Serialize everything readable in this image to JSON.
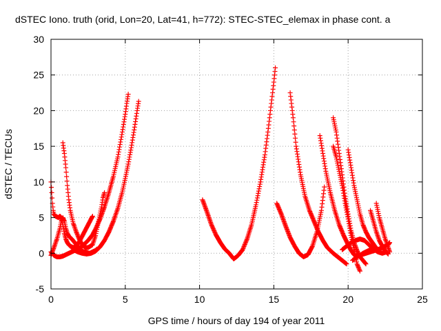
{
  "chart_data": {
    "type": "scatter",
    "title": "dSTEC Iono. truth (orid, Lon=20, Lat=41, h=772): STEC-STEC_elemax in phase cont. a",
    "xlabel": "GPS time / hours of day 194 of year 2011",
    "ylabel": "dSTEC  / TECUs",
    "xlim": [
      0,
      25
    ],
    "ylim": [
      -5,
      30
    ],
    "xticks": [
      "0",
      "5",
      "10",
      "15",
      "20",
      "25"
    ],
    "yticks": [
      "-5",
      "0",
      "5",
      "10",
      "15",
      "20",
      "25",
      "30"
    ],
    "grid": true,
    "marker": "+",
    "color": "#ff0000",
    "series": [
      {
        "x": [
          0.0,
          0.05,
          0.1,
          0.15,
          0.2,
          0.3,
          0.4,
          0.5,
          0.6,
          0.7,
          0.8,
          0.9,
          1.0,
          1.1,
          1.2,
          1.3,
          1.5,
          1.7,
          1.9,
          2.1,
          2.3,
          2.5,
          2.7,
          2.8
        ],
        "y": [
          10.0,
          8.5,
          7.0,
          6.0,
          5.5,
          5.2,
          5.1,
          5.0,
          5.2,
          5.0,
          4.0,
          2.8,
          2.0,
          1.5,
          1.2,
          1.0,
          0.8,
          1.0,
          1.6,
          2.4,
          3.2,
          4.0,
          4.8,
          5.2
        ]
      },
      {
        "x": [
          0.0,
          0.2,
          0.4,
          0.6,
          0.7,
          0.8,
          0.9,
          1.0,
          1.1,
          1.2,
          1.4,
          1.6,
          1.8,
          2.0,
          2.2,
          2.4,
          2.6,
          2.8,
          3.0,
          3.1
        ],
        "y": [
          -0.3,
          0.8,
          2.0,
          3.5,
          4.5,
          5.0,
          4.5,
          3.5,
          2.8,
          2.4,
          2.0,
          1.5,
          1.0,
          0.5,
          0.2,
          0.1,
          0.0,
          0.2,
          0.4,
          0.6
        ]
      },
      {
        "x": [
          0.8,
          0.9,
          1.0,
          1.1,
          1.2,
          1.3,
          1.5,
          1.7,
          1.9,
          2.1,
          2.3,
          2.5,
          2.8,
          3.0,
          3.2,
          3.4,
          3.5,
          3.6
        ],
        "y": [
          15.5,
          14.0,
          12.0,
          9.5,
          7.5,
          6.0,
          4.2,
          3.0,
          2.0,
          1.2,
          0.8,
          0.8,
          1.2,
          2.5,
          4.5,
          6.5,
          7.8,
          8.5
        ]
      },
      {
        "x": [
          0.0,
          0.2,
          0.4,
          0.6,
          0.8,
          1.0,
          1.2,
          1.5,
          1.8,
          2.0,
          2.2,
          2.5,
          2.8,
          3.0,
          3.3,
          3.6,
          3.9,
          4.2,
          4.5,
          4.8,
          5.0,
          5.1,
          5.2
        ],
        "y": [
          0.2,
          -0.3,
          -0.5,
          -0.5,
          -0.4,
          -0.2,
          0.0,
          0.3,
          0.6,
          0.8,
          1.2,
          1.8,
          2.6,
          3.4,
          4.8,
          6.5,
          8.5,
          10.8,
          13.5,
          17.0,
          19.5,
          21.0,
          22.3
        ]
      },
      {
        "x": [
          1.5,
          1.8,
          2.1,
          2.4,
          2.7,
          3.0,
          3.3,
          3.6,
          3.9,
          4.2,
          4.5,
          4.8,
          5.0,
          5.2,
          5.4,
          5.6,
          5.8,
          5.9
        ],
        "y": [
          0.5,
          0.2,
          0.0,
          -0.1,
          0.0,
          0.3,
          0.9,
          1.8,
          3.0,
          4.5,
          6.3,
          8.6,
          10.5,
          12.5,
          14.8,
          17.3,
          20.0,
          21.3
        ]
      },
      {
        "x": [
          10.2,
          10.5,
          10.8,
          11.1,
          11.4,
          11.7,
          12.0,
          12.3,
          12.6,
          12.9,
          13.2,
          13.5,
          13.8,
          14.1,
          14.4,
          14.6,
          14.8,
          15.0,
          15.1
        ],
        "y": [
          7.5,
          5.8,
          4.0,
          2.6,
          1.5,
          0.6,
          0.0,
          -0.8,
          -0.3,
          0.5,
          2.0,
          4.0,
          6.8,
          10.0,
          13.8,
          17.0,
          20.5,
          24.0,
          26.0
        ]
      },
      {
        "x": [
          15.2,
          15.5,
          15.8,
          16.1,
          16.4,
          16.7,
          17.0,
          17.3,
          17.6,
          17.9,
          18.2,
          18.4
        ],
        "y": [
          7.0,
          5.5,
          3.8,
          2.2,
          1.0,
          0.0,
          -0.5,
          -0.2,
          1.0,
          3.0,
          6.0,
          9.3
        ]
      },
      {
        "x": [
          16.1,
          16.3,
          16.5,
          16.8,
          17.1,
          17.4,
          17.7,
          18.0,
          18.3,
          18.6,
          19.0,
          19.3,
          19.6,
          19.9
        ],
        "y": [
          22.5,
          19.0,
          15.0,
          11.0,
          8.0,
          6.0,
          4.5,
          3.0,
          1.8,
          0.8,
          0.0,
          -0.5,
          -1.0,
          -1.5
        ]
      },
      {
        "x": [
          18.1,
          18.3,
          18.5,
          18.8,
          19.1,
          19.4,
          19.7,
          20.0,
          20.2,
          20.4,
          20.6,
          20.8,
          21.0,
          21.3,
          21.6
        ],
        "y": [
          16.5,
          14.0,
          11.5,
          8.5,
          6.0,
          4.0,
          2.5,
          1.2,
          0.4,
          -0.2,
          -0.5,
          -0.3,
          0.0,
          0.3,
          0.6
        ]
      },
      {
        "x": [
          19.0,
          19.2,
          19.4,
          19.6,
          19.8,
          20.0,
          20.2,
          20.4,
          20.6,
          20.8,
          21.0,
          21.2
        ],
        "y": [
          19.0,
          17.0,
          14.0,
          11.0,
          8.0,
          5.5,
          3.2,
          1.5,
          0.4,
          -0.5,
          -1.0,
          -1.5
        ]
      },
      {
        "x": [
          19.0,
          19.2,
          19.4,
          19.6,
          19.8,
          20.0,
          20.2,
          20.4,
          20.6,
          20.8
        ],
        "y": [
          15.0,
          13.5,
          11.5,
          9.5,
          7.0,
          4.8,
          2.5,
          0.5,
          -1.5,
          -2.5
        ]
      },
      {
        "x": [
          20.0,
          20.2,
          20.4,
          20.6,
          20.8,
          21.0,
          21.2,
          21.4,
          21.6,
          21.8,
          22.0,
          22.2
        ],
        "y": [
          14.5,
          12.0,
          9.5,
          7.5,
          5.5,
          4.0,
          3.0,
          2.2,
          1.6,
          1.0,
          0.5,
          0.2
        ]
      },
      {
        "x": [
          21.5,
          21.7,
          21.9,
          22.1,
          22.3,
          22.5,
          22.7
        ],
        "y": [
          6.0,
          4.5,
          3.0,
          1.8,
          1.0,
          0.3,
          -0.1
        ]
      },
      {
        "x": [
          21.9,
          22.1,
          22.3,
          22.5,
          22.7,
          22.8
        ],
        "y": [
          7.0,
          5.0,
          3.5,
          2.0,
          0.8,
          0.2
        ]
      },
      {
        "x": [
          20.3,
          20.6,
          20.9,
          21.2,
          21.5,
          21.8,
          22.1,
          22.4,
          22.7,
          22.8
        ],
        "y": [
          -1.0,
          -0.5,
          -0.2,
          0.0,
          0.2,
          0.4,
          0.6,
          0.9,
          1.2,
          1.5
        ]
      },
      {
        "x": [
          19.6,
          19.9,
          20.2,
          20.5,
          20.8,
          21.1,
          21.4,
          21.7,
          22.0,
          22.3,
          22.6
        ],
        "y": [
          0.5,
          1.0,
          1.5,
          1.8,
          2.0,
          1.8,
          1.2,
          0.6,
          0.2,
          0.0,
          0.2
        ]
      }
    ]
  }
}
